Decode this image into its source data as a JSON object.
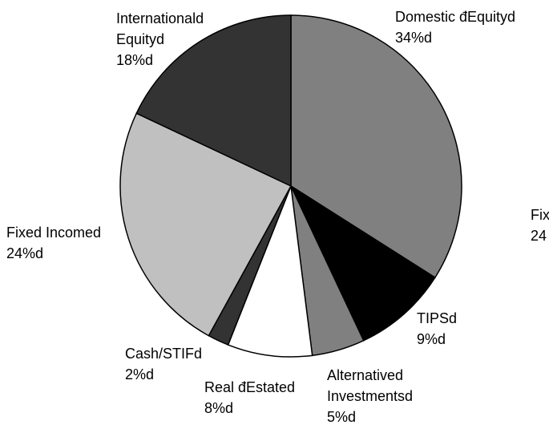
{
  "chart_data": {
    "type": "pie",
    "categories": [
      "Domestic đEquityd",
      "TIPSd",
      "Alternatived Investmentsd",
      "Real đEstated",
      "Cash/STIFd",
      "Fixed Incomed",
      "Internationald Equityd"
    ],
    "values": [
      34,
      9,
      5,
      8,
      2,
      24,
      18
    ],
    "value_labels": [
      "34%d",
      "9%d",
      "5%d",
      "8%d",
      "2%d",
      "24%d",
      "18%d"
    ],
    "colors": [
      "#808080",
      "#000000",
      "#808080",
      "#ffffff",
      "#333333",
      "#c0c0c0",
      "#333333"
    ],
    "annotations": [
      "Fix",
      "24"
    ]
  }
}
